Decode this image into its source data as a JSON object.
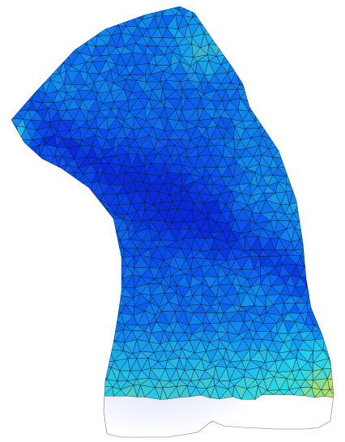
{
  "figure": {
    "subject": "triangulated-torso-mesh",
    "background_color": "#ffffff",
    "wireframe_color": "#0b1d3a",
    "colormap": [
      "#0a2bd6",
      "#0a56f0",
      "#0b7df5",
      "#14b2f2",
      "#2ad6e8",
      "#52ddc4",
      "#9be07c",
      "#d9e04a"
    ]
  }
}
